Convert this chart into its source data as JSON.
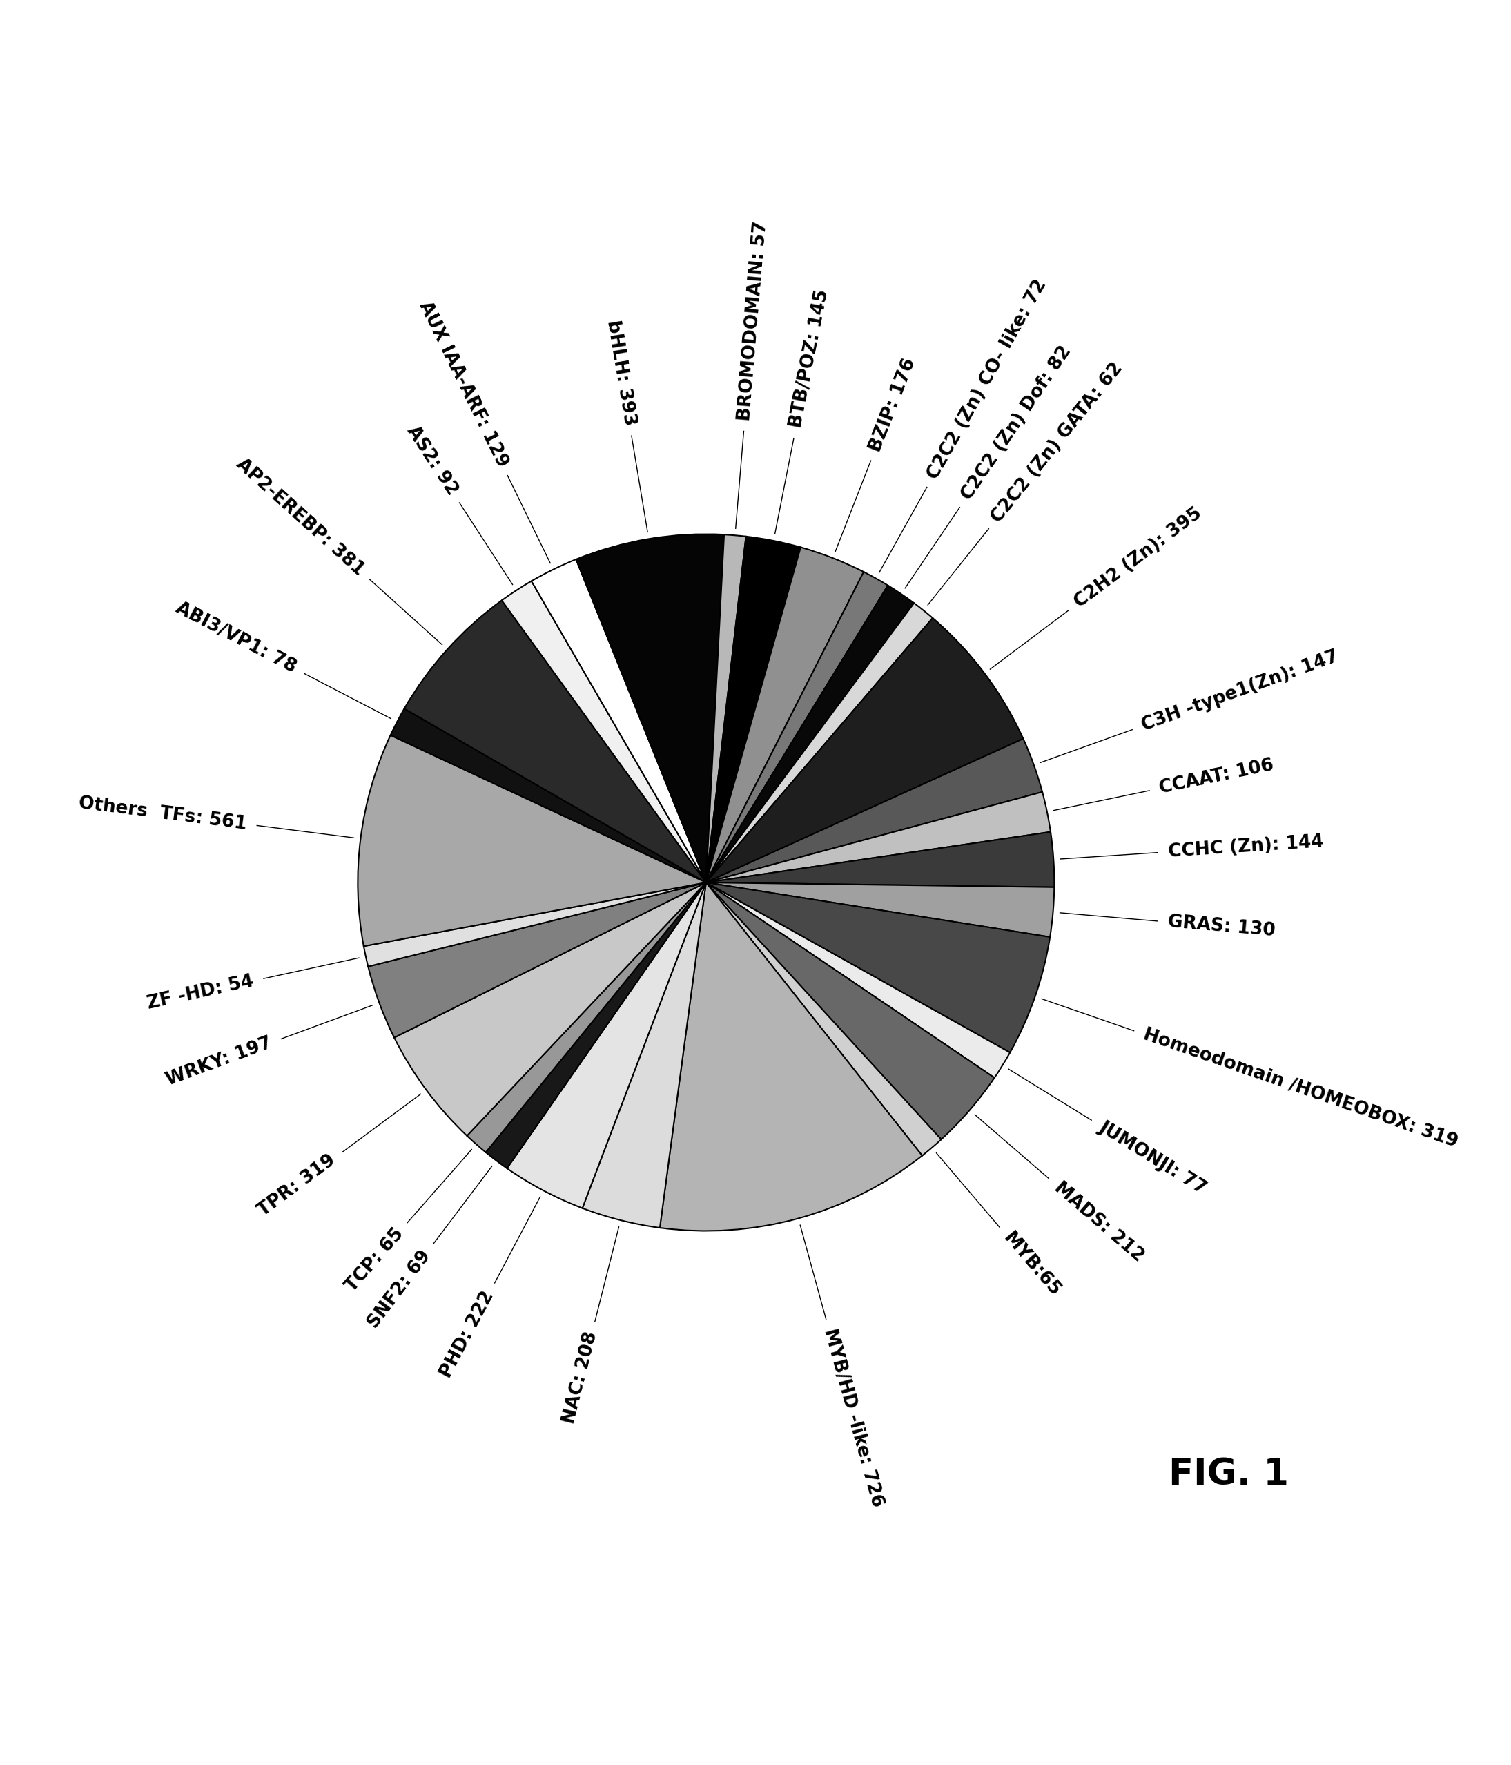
{
  "labels": [
    "ABI3/VP1: 78",
    "AP2-EREBP: 381",
    "AS2: 92",
    "AUX IAA-ARF: 129",
    "bHLH: 393",
    "BROMODOMAIN: 57",
    "BTB/POZ: 145",
    "BZIP: 176",
    "C2C2 (Zn) CO- like: 72",
    "C2C2 (Zn) Dof: 82",
    "C2C2 (Zn) GATA: 62",
    "C2H2 (Zn): 395",
    "C3H -type1(Zn): 147",
    "CCAAT: 106",
    "CCHC (Zn): 144",
    "GRAS: 130",
    "Homeodomain /HOMEOBOX: 319",
    "JUMONJI: 77",
    "MADS: 212",
    "MYB:65",
    "MYB/HD -like: 726",
    "NAC: 208",
    "PHD: 222",
    "SNF2: 69",
    "TCP: 65",
    "TPR: 319",
    "WRKY: 197",
    "ZF -HD: 54",
    "Others  TFs: 561"
  ],
  "values": [
    78,
    381,
    92,
    129,
    393,
    57,
    145,
    176,
    72,
    82,
    62,
    395,
    147,
    106,
    144,
    130,
    319,
    77,
    212,
    65,
    726,
    208,
    222,
    69,
    65,
    319,
    197,
    54,
    561
  ],
  "colors": [
    "#111111",
    "#2a2a2a",
    "#f0f0f0",
    "#ffffff",
    "#050505",
    "#b8b8b8",
    "#000000",
    "#909090",
    "#787878",
    "#080808",
    "#d8d8d8",
    "#1e1e1e",
    "#585858",
    "#c0c0c0",
    "#3a3a3a",
    "#a0a0a0",
    "#484848",
    "#ebebeb",
    "#686868",
    "#d0d0d0",
    "#b4b4b4",
    "#dcdcdc",
    "#e4e4e4",
    "#181818",
    "#989898",
    "#c8c8c8",
    "#808080",
    "#e0e0e0",
    "#a8a8a8"
  ],
  "edge_color": "#000000",
  "edge_width": 1.5,
  "title": "FIG. 1",
  "start_angle": 155,
  "figure_width": 21.89,
  "figure_height": 25.56,
  "label_fontsize": 19,
  "title_fontsize": 38
}
